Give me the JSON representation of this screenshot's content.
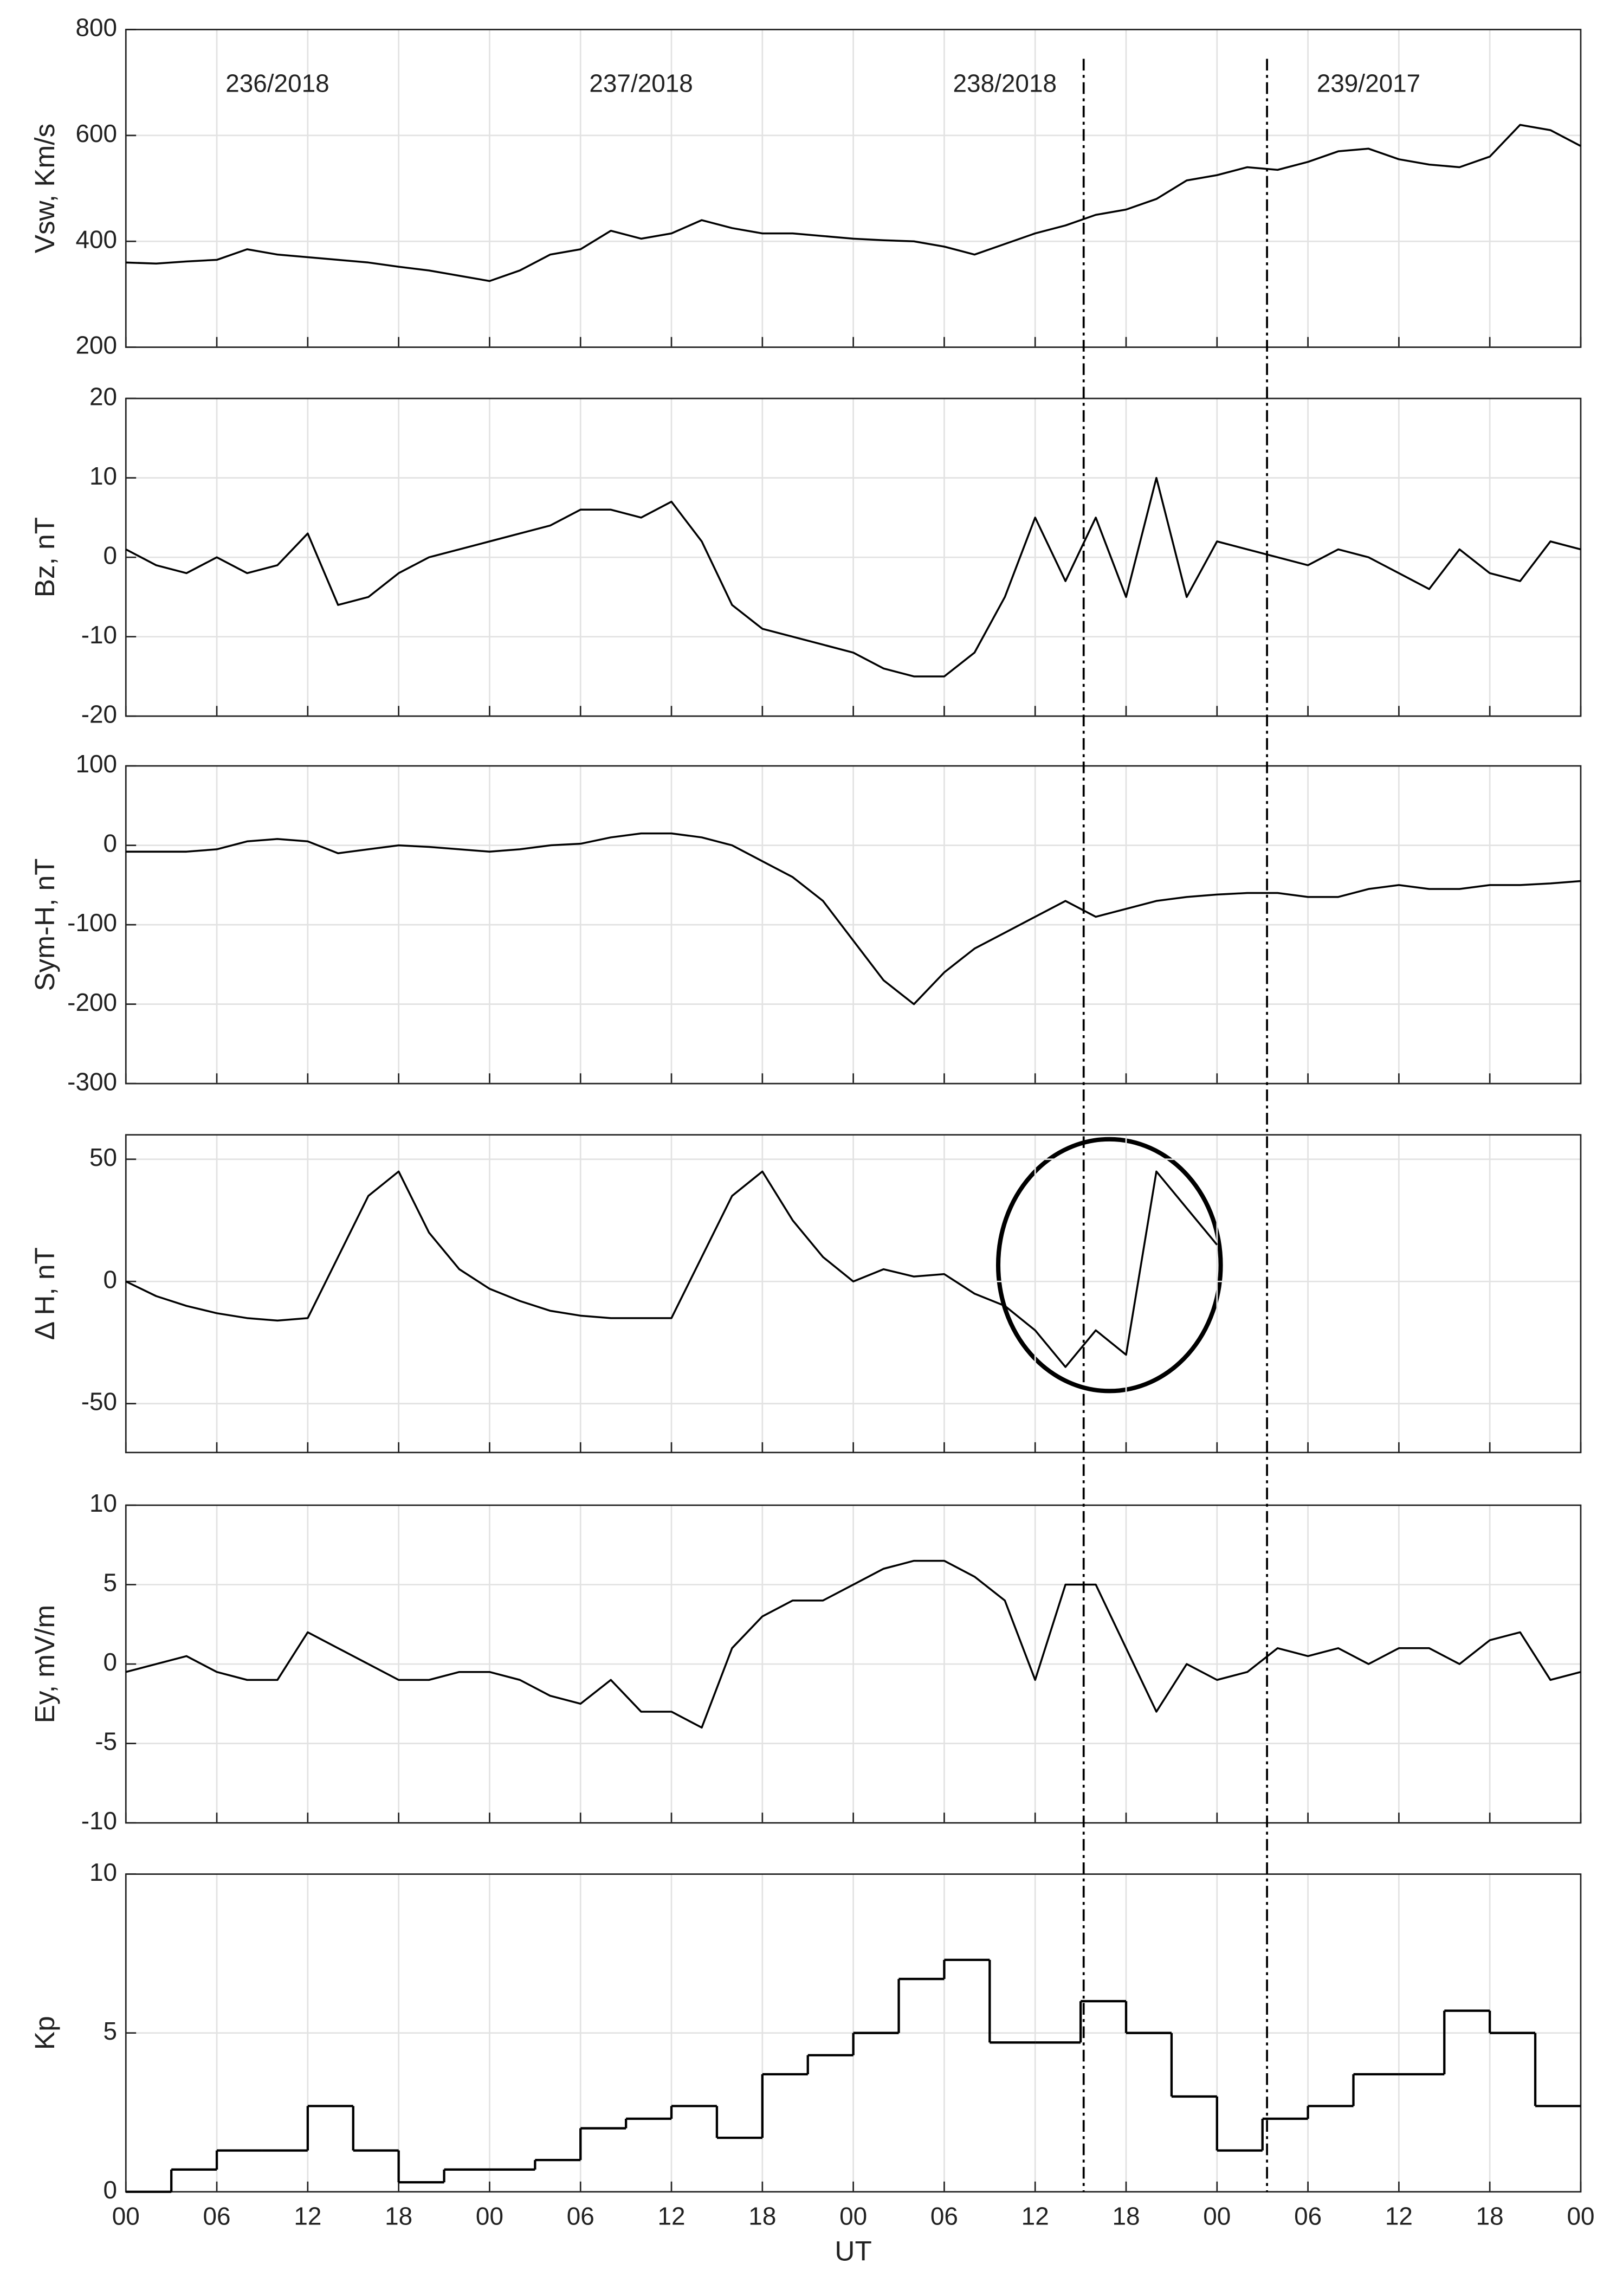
{
  "chart_data": [
    {
      "type": "line",
      "ylabel": "Vsw, Km/s",
      "annotations": [
        "236/2018",
        "237/2018",
        "238/2018",
        "239/2017"
      ],
      "x": [
        0,
        2,
        4,
        6,
        8,
        10,
        12,
        14,
        16,
        18,
        20,
        22,
        24,
        26,
        28,
        30,
        32,
        34,
        36,
        38,
        40,
        42,
        44,
        46,
        48,
        50,
        52,
        54,
        56,
        58,
        60,
        62,
        64,
        66,
        68,
        70,
        72,
        74,
        76,
        78,
        80,
        82,
        84,
        86,
        88,
        90,
        92,
        94,
        96
      ],
      "series": [
        {
          "color": "#000000",
          "values": [
            360,
            358,
            362,
            365,
            385,
            375,
            370,
            365,
            360,
            352,
            345,
            335,
            325,
            345,
            375,
            385,
            420,
            405,
            415,
            440,
            425,
            415,
            415,
            410,
            405,
            402,
            400,
            390,
            375,
            395,
            415,
            430,
            450,
            460,
            480,
            515,
            525,
            540,
            535,
            550,
            570,
            575,
            555,
            545,
            540,
            560,
            620,
            610,
            580
          ]
        }
      ],
      "xlim": [
        0,
        96
      ],
      "xticks": [
        0,
        6,
        12,
        18,
        24,
        30,
        36,
        42,
        48,
        54,
        60,
        66,
        72,
        78,
        84,
        90,
        96
      ],
      "ylim": [
        200,
        800
      ],
      "yticks": [
        200,
        400,
        600,
        800
      ],
      "grid": true
    },
    {
      "type": "line",
      "ylabel": "Bz, nT",
      "x": [
        0,
        2,
        4,
        6,
        8,
        10,
        12,
        14,
        16,
        18,
        20,
        22,
        24,
        26,
        28,
        30,
        32,
        34,
        36,
        38,
        40,
        42,
        44,
        46,
        48,
        50,
        52,
        54,
        56,
        58,
        60,
        62,
        64,
        66,
        68,
        70,
        72,
        74,
        76,
        78,
        80,
        82,
        84,
        86,
        88,
        90,
        92,
        94,
        96
      ],
      "series": [
        {
          "color": "#000000",
          "values": [
            1,
            -1,
            -2,
            0,
            -2,
            -1,
            3,
            -6,
            -5,
            -2,
            0,
            1,
            2,
            3,
            4,
            6,
            6,
            5,
            7,
            2,
            -6,
            -9,
            -10,
            -11,
            -12,
            -14,
            -15,
            -15,
            -12,
            -5,
            5,
            -3,
            5,
            -5,
            10,
            -5,
            2,
            1,
            0,
            -1,
            1,
            0,
            -2,
            -4,
            1,
            -2,
            -3,
            2,
            1
          ]
        }
      ],
      "xlim": [
        0,
        96
      ],
      "xticks": [
        0,
        6,
        12,
        18,
        24,
        30,
        36,
        42,
        48,
        54,
        60,
        66,
        72,
        78,
        84,
        90,
        96
      ],
      "ylim": [
        -20,
        20
      ],
      "yticks": [
        -20,
        -10,
        0,
        10,
        20
      ],
      "grid": true
    },
    {
      "type": "line",
      "ylabel": "Sym-H, nT",
      "x": [
        0,
        2,
        4,
        6,
        8,
        10,
        12,
        14,
        16,
        18,
        20,
        22,
        24,
        26,
        28,
        30,
        32,
        34,
        36,
        38,
        40,
        42,
        44,
        46,
        48,
        50,
        52,
        54,
        56,
        58,
        60,
        62,
        64,
        66,
        68,
        70,
        72,
        74,
        76,
        78,
        80,
        82,
        84,
        86,
        88,
        90,
        92,
        94,
        96
      ],
      "series": [
        {
          "color": "#000000",
          "values": [
            -8,
            -8,
            -8,
            -5,
            5,
            8,
            5,
            -10,
            -5,
            0,
            -2,
            -5,
            -8,
            -5,
            0,
            2,
            10,
            15,
            15,
            10,
            0,
            -20,
            -40,
            -70,
            -120,
            -170,
            -200,
            -160,
            -130,
            -110,
            -90,
            -70,
            -90,
            -80,
            -70,
            -65,
            -62,
            -60,
            -60,
            -65,
            -65,
            -55,
            -50,
            -55,
            -55,
            -50,
            -50,
            -48,
            -45
          ]
        }
      ],
      "xlim": [
        0,
        96
      ],
      "xticks": [
        0,
        6,
        12,
        18,
        24,
        30,
        36,
        42,
        48,
        54,
        60,
        66,
        72,
        78,
        84,
        90,
        96
      ],
      "ylim": [
        -300,
        100
      ],
      "yticks": [
        -300,
        -200,
        -100,
        0,
        100
      ],
      "grid": true
    },
    {
      "type": "line",
      "ylabel": "Δ H, nT",
      "x": [
        0,
        2,
        4,
        6,
        8,
        10,
        12,
        14,
        16,
        18,
        20,
        22,
        24,
        26,
        28,
        30,
        32,
        34,
        36,
        38,
        40,
        42,
        44,
        46,
        48,
        50,
        52,
        54,
        56,
        58,
        60,
        62,
        64,
        66,
        68,
        70,
        72,
        74,
        76,
        78,
        80,
        82,
        84,
        86,
        88,
        90,
        92,
        94,
        96
      ],
      "series": [
        {
          "color": "#000000",
          "values": [
            0,
            -6,
            -10,
            -13,
            -15,
            -16,
            -15,
            10,
            35,
            45,
            20,
            5,
            -3,
            -8,
            -12,
            -14,
            -15,
            -15,
            -15,
            10,
            35,
            45,
            25,
            10,
            0,
            5,
            2,
            3,
            -5,
            -10,
            -20,
            -35,
            -20,
            -30,
            45,
            30,
            15,
            null,
            null,
            null,
            null,
            null,
            null,
            null,
            null,
            null,
            null,
            null,
            null
          ]
        }
      ],
      "xlim": [
        0,
        96
      ],
      "xticks": [
        0,
        6,
        12,
        18,
        24,
        30,
        36,
        42,
        48,
        54,
        60,
        66,
        72,
        78,
        84,
        90,
        96
      ],
      "ylim": [
        -70,
        60
      ],
      "yticks": [
        -50,
        0,
        50
      ],
      "grid": true
    },
    {
      "type": "line",
      "ylabel": "Ey, mV/m",
      "x": [
        0,
        2,
        4,
        6,
        8,
        10,
        12,
        14,
        16,
        18,
        20,
        22,
        24,
        26,
        28,
        30,
        32,
        34,
        36,
        38,
        40,
        42,
        44,
        46,
        48,
        50,
        52,
        54,
        56,
        58,
        60,
        62,
        64,
        66,
        68,
        70,
        72,
        74,
        76,
        78,
        80,
        82,
        84,
        86,
        88,
        90,
        92,
        94,
        96
      ],
      "series": [
        {
          "color": "#000000",
          "values": [
            -0.5,
            0,
            0.5,
            -0.5,
            -1,
            -1,
            2,
            1,
            0,
            -1,
            -1,
            -0.5,
            -0.5,
            -1,
            -2,
            -2.5,
            -1,
            -3,
            -3,
            -4,
            1,
            3,
            4,
            4,
            5,
            6,
            6.5,
            6.5,
            5.5,
            4,
            -1,
            5,
            5,
            1,
            -3,
            0,
            -1,
            -0.5,
            1,
            0.5,
            1,
            0,
            1,
            1,
            0,
            1.5,
            2,
            -1,
            -0.5
          ]
        }
      ],
      "xlim": [
        0,
        96
      ],
      "xticks": [
        0,
        6,
        12,
        18,
        24,
        30,
        36,
        42,
        48,
        54,
        60,
        66,
        72,
        78,
        84,
        90,
        96
      ],
      "ylim": [
        -10,
        10
      ],
      "yticks": [
        -10,
        -5,
        0,
        5,
        10
      ],
      "grid": true
    },
    {
      "type": "step",
      "ylabel": "Kp",
      "xlabel": "UT",
      "x": [
        0,
        3,
        6,
        9,
        12,
        15,
        18,
        21,
        24,
        27,
        30,
        33,
        36,
        39,
        42,
        45,
        48,
        51,
        54,
        57,
        60,
        63,
        66,
        69,
        72,
        75,
        78,
        81,
        84,
        87,
        90,
        93
      ],
      "series": [
        {
          "color": "#000000",
          "values": [
            0,
            0.7,
            1.3,
            1.3,
            2.7,
            1.3,
            0.3,
            0.7,
            0.7,
            1.0,
            2.0,
            2.3,
            2.7,
            1.7,
            3.7,
            4.3,
            5.0,
            6.7,
            7.3,
            4.7,
            4.7,
            6.0,
            5.0,
            3.0,
            1.3,
            2.3,
            2.7,
            3.7,
            3.7,
            5.7,
            5.0,
            2.7
          ]
        }
      ],
      "xlim": [
        0,
        96
      ],
      "xticks": [
        {
          "value": 0,
          "label": "00"
        },
        {
          "value": 6,
          "label": "06"
        },
        {
          "value": 12,
          "label": "12"
        },
        {
          "value": 18,
          "label": "18"
        },
        {
          "value": 24,
          "label": "00"
        },
        {
          "value": 30,
          "label": "06"
        },
        {
          "value": 36,
          "label": "12"
        },
        {
          "value": 42,
          "label": "18"
        },
        {
          "value": 48,
          "label": "00"
        },
        {
          "value": 54,
          "label": "06"
        },
        {
          "value": 60,
          "label": "12"
        },
        {
          "value": 66,
          "label": "18"
        },
        {
          "value": 72,
          "label": "00"
        },
        {
          "value": 78,
          "label": "06"
        },
        {
          "value": 84,
          "label": "12"
        },
        {
          "value": 90,
          "label": "18"
        },
        {
          "value": 96,
          "label": "00"
        }
      ],
      "ylim": [
        0,
        10
      ],
      "yticks": [
        0,
        5,
        10
      ],
      "grid": true
    }
  ],
  "event_lines": [
    63.2,
    75.3
  ]
}
